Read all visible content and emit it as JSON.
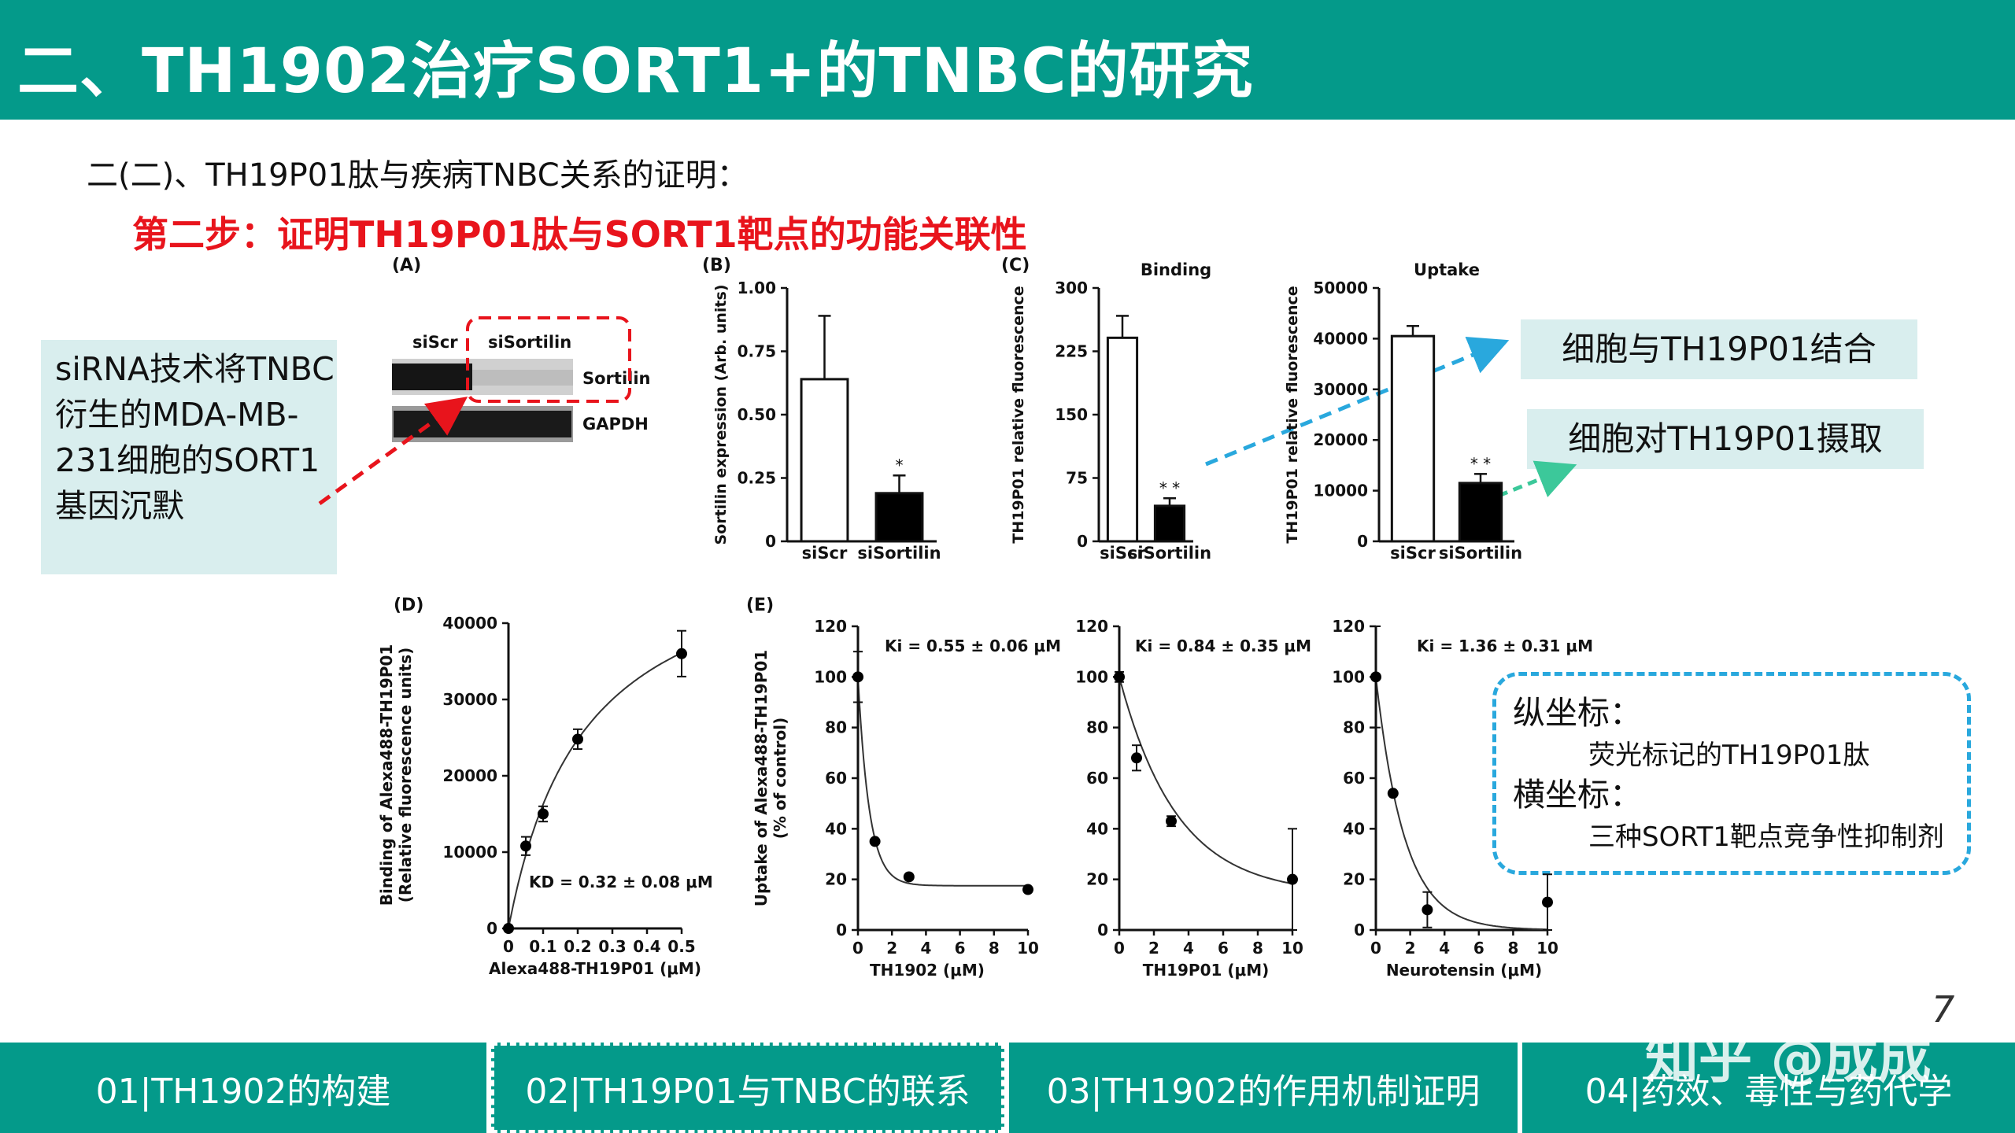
{
  "header": {
    "title": "二、TH1902治疗SORT1+的TNBC的研究"
  },
  "subtitle": "二(二)、TH19P01肽与疾病TNBC关系的证明：",
  "step": "第二步：证明TH19P01肽与SORT1靶点的功能关联性",
  "note": "siRNA技术将TNBC衍生的MDA-MB-231细胞的SORT1基因沉默",
  "callouts": {
    "binding": "细胞与TH19P01结合",
    "uptake": "细胞对TH19P01摄取"
  },
  "axis_note": {
    "y_title": "纵坐标：",
    "y_desc": "荧光标记的TH19P01肽",
    "x_title": "横坐标：",
    "x_desc": "三种SORT1靶点竞争性抑制剂"
  },
  "blot": {
    "panel": "(A)",
    "lanes": [
      "siScr",
      "siSortilin"
    ],
    "rows": [
      "Sortilin",
      "GAPDH"
    ]
  },
  "panel_labels": {
    "b": "(B)",
    "c": "(C)",
    "d": "(D)",
    "e": "(E)"
  },
  "chart_data": [
    {
      "id": "B",
      "type": "bar",
      "categories": [
        "siScr",
        "siSortilin"
      ],
      "values": [
        0.64,
        0.19
      ],
      "errors": [
        0.25,
        0.07
      ],
      "ylabel": "Sortilin expression (Arb. units)",
      "ylim": [
        0,
        1.0
      ],
      "yticks": [
        "0",
        "0.25",
        "0.50",
        "0.75",
        "1.00"
      ],
      "significance": [
        "",
        "*"
      ]
    },
    {
      "id": "C1",
      "type": "bar",
      "title": "Binding",
      "categories": [
        "siScr",
        "siSortilin"
      ],
      "values": [
        241,
        42
      ],
      "errors": [
        26,
        9
      ],
      "ylabel": "TH19P01 relative fluorescence",
      "ylim": [
        0,
        300
      ],
      "yticks": [
        "0",
        "75",
        "150",
        "225",
        "300"
      ],
      "significance": [
        "",
        "* *"
      ]
    },
    {
      "id": "C2",
      "type": "bar",
      "title": "Uptake",
      "categories": [
        "siScr",
        "siSortilin"
      ],
      "values": [
        40500,
        11500
      ],
      "errors": [
        2000,
        1800
      ],
      "ylabel": "TH19P01 relative fluorescence",
      "ylim": [
        0,
        50000
      ],
      "yticks": [
        "0",
        "10000",
        "20000",
        "30000",
        "40000",
        "50000"
      ],
      "significance": [
        "",
        "* *"
      ]
    },
    {
      "id": "D",
      "type": "scatter",
      "x": [
        0,
        0.05,
        0.1,
        0.2,
        0.5
      ],
      "y": [
        0,
        10800,
        15000,
        24800,
        36000
      ],
      "errors": [
        0,
        1200,
        1000,
        1300,
        3000
      ],
      "xlabel": "Alexa488-TH19P01 (μM)",
      "ylabel": "Binding of Alexa488-TH19P01",
      "ylabel2": "(Relative fluorescence units)",
      "xlim": [
        0,
        0.5
      ],
      "ylim": [
        0,
        40000
      ],
      "xticks": [
        "0",
        "0.1",
        "0.2",
        "0.3",
        "0.4",
        "0.5"
      ],
      "yticks": [
        "0",
        "10000",
        "20000",
        "30000",
        "40000"
      ],
      "annotation": "KD = 0.32 ± 0.08 μM",
      "fit": "saturation"
    },
    {
      "id": "E1",
      "type": "scatter",
      "x": [
        0,
        1,
        3,
        10
      ],
      "y": [
        100,
        35,
        21,
        16
      ],
      "errors": [
        10,
        0,
        0,
        0
      ],
      "xlabel": "TH1902  (μM)",
      "ylabel": "Uptake of Alexa488-TH19P01",
      "ylabel2": "(% of control)",
      "xlim": [
        0,
        10
      ],
      "ylim": [
        0,
        120
      ],
      "xticks": [
        "0",
        "2",
        "4",
        "6",
        "8",
        "10"
      ],
      "yticks": [
        "0",
        "20",
        "40",
        "60",
        "80",
        "100",
        "120"
      ],
      "annotation": "Ki = 0.55 ± 0.06 μM",
      "fit": {
        "bottom": 17.5,
        "k": 1.5
      }
    },
    {
      "id": "E2",
      "type": "scatter",
      "x": [
        0,
        1,
        3,
        10
      ],
      "y": [
        100,
        68,
        43,
        20
      ],
      "errors": [
        2,
        5,
        2,
        20
      ],
      "xlabel": "TH19P01 (μM)",
      "xlim": [
        0,
        10
      ],
      "ylim": [
        0,
        120
      ],
      "xticks": [
        "0",
        "2",
        "4",
        "6",
        "8",
        "10"
      ],
      "yticks": [
        "0",
        "20",
        "40",
        "60",
        "80",
        "100",
        "120"
      ],
      "annotation": "Ki = 0.84 ± 0.35 μM",
      "fit": {
        "bottom": 14,
        "k": 0.3
      }
    },
    {
      "id": "E3",
      "type": "scatter",
      "x": [
        0,
        1,
        3,
        10
      ],
      "y": [
        100,
        54,
        8,
        11
      ],
      "errors": [
        20,
        0,
        7,
        11
      ],
      "xlabel": "Neurotensin (μM)",
      "xlim": [
        0,
        10
      ],
      "ylim": [
        0,
        120
      ],
      "xticks": [
        "0",
        "2",
        "4",
        "6",
        "8",
        "10"
      ],
      "yticks": [
        "0",
        "20",
        "40",
        "60",
        "80",
        "100",
        "120"
      ],
      "annotation": "Ki = 1.36 ± 0.31 μM",
      "fit": {
        "bottom": 0,
        "k": 0.6
      }
    }
  ],
  "footer": {
    "tabs": [
      "01|TH1902的构建",
      "02|TH19P01与TNBC的联系",
      "03|TH1902的作用机制证明",
      "04|药效、毒性与药代学"
    ]
  },
  "watermark": "知乎 @成成",
  "page_number": "7",
  "colors": {
    "teal": "#049a8a",
    "red": "#e8141c",
    "blue": "#29a8dd",
    "green": "#3cc89a",
    "box": "#d9eeee"
  }
}
